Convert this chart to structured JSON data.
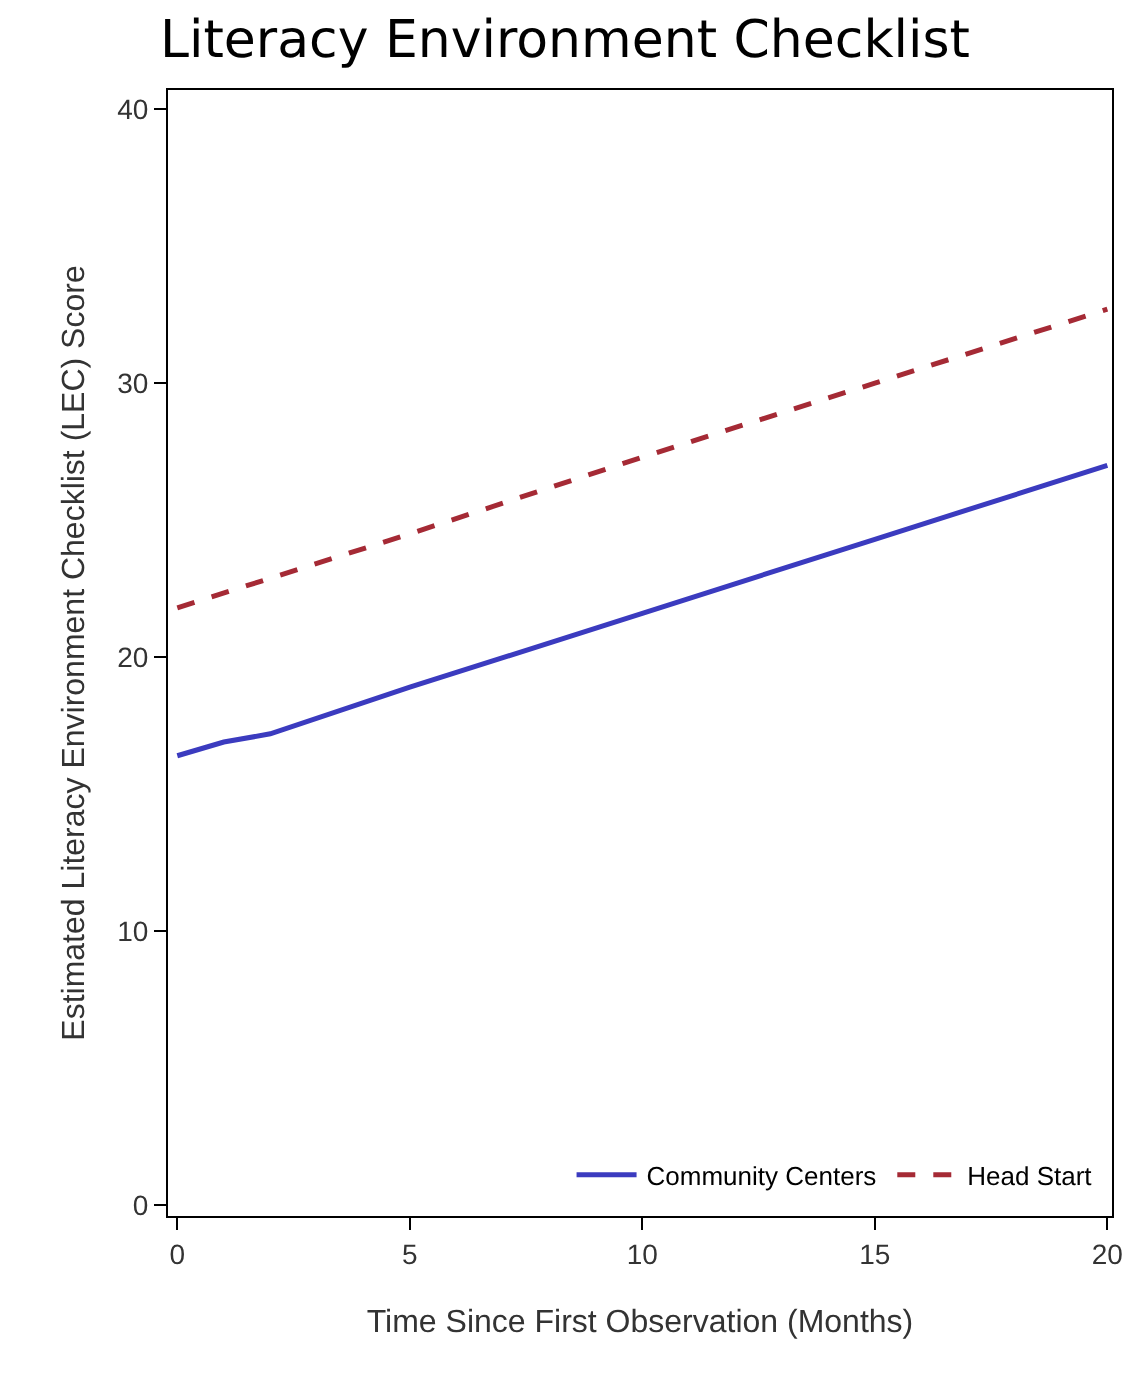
{
  "chart_data": {
    "type": "line",
    "title": "Literacy Environment Checklist",
    "xlabel": "Time Since First Observation (Months)",
    "ylabel": "Estimated Literacy Environment Checklist (LEC) Score",
    "x": [
      0,
      1,
      2,
      5,
      10,
      15,
      20
    ],
    "series": [
      {
        "name": "Community Centers",
        "color": "#3b3bbf",
        "line_style": "solid",
        "values": [
          16.4,
          16.9,
          17.2,
          18.9,
          21.6,
          24.3,
          27.0
        ]
      },
      {
        "name": "Head Start",
        "color": "#a52a35",
        "line_style": "dashed",
        "x": [
          0,
          5,
          10,
          15,
          20
        ],
        "values": [
          21.8,
          24.5,
          27.3,
          30.0,
          32.7
        ]
      }
    ],
    "xlim": [
      -0.2,
      20.1
    ],
    "ylim": [
      -0.4,
      40.7
    ],
    "xticks": [
      0,
      5,
      10,
      15,
      20
    ],
    "yticks": [
      0,
      10,
      20,
      30,
      40
    ],
    "grid": false,
    "legend": "bottom right",
    "marker": "none"
  }
}
